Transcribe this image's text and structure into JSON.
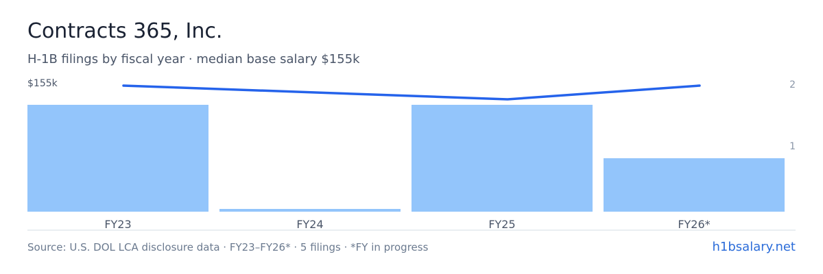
{
  "header": {
    "title": "Contracts 365, Inc.",
    "subtitle": "H-1B filings by fiscal year · median base salary $155k"
  },
  "chart_data": {
    "type": "bar",
    "categories": [
      "FY23",
      "FY24",
      "FY25",
      "FY26*"
    ],
    "series": [
      {
        "type": "bar",
        "values": [
          2,
          0.05,
          2,
          1
        ],
        "color": "#93c5fb",
        "axis": "right"
      },
      {
        "type": "line",
        "values": [
          155000,
          154000,
          153000,
          155000
        ],
        "color": "#2563eb",
        "axis": "left"
      }
    ],
    "left_axis": {
      "tick_labels": [
        "$155k"
      ]
    },
    "right_axis": {
      "ticks": [
        1,
        2
      ],
      "range": [
        0,
        2.4
      ]
    },
    "grid": false
  },
  "footer": {
    "source": "Source: U.S. DOL LCA disclosure data · FY23–FY26* · 5 filings · *FY in progress",
    "brand": "h1bsalary.net"
  }
}
